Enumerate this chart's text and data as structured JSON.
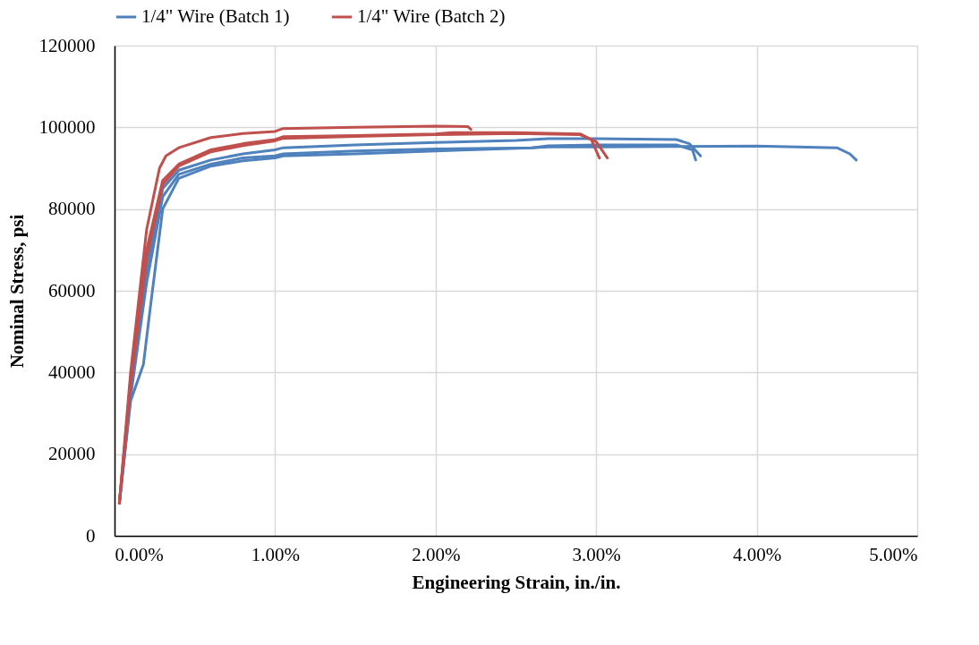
{
  "chart_data": {
    "type": "line",
    "xlabel": "Engineering Strain, in./in.",
    "ylabel": "Nominal Stress, psi",
    "xlim": [
      0,
      0.05
    ],
    "xticks": [
      {
        "value": 0,
        "label": "0.00%"
      },
      {
        "value": 0.01,
        "label": "1.00%"
      },
      {
        "value": 0.02,
        "label": "2.00%"
      },
      {
        "value": 0.03,
        "label": "3.00%"
      },
      {
        "value": 0.04,
        "label": "4.00%"
      },
      {
        "value": 0.05,
        "label": "5.00%"
      }
    ],
    "ylim": [
      0,
      120000
    ],
    "yticks": [
      0,
      20000,
      40000,
      60000,
      80000,
      100000,
      120000
    ],
    "grid": true,
    "legend": "top",
    "line_style": "solid",
    "series": [
      {
        "name": "1/4\" Wire (Batch 1)",
        "color": "#4f81bd",
        "x": [
          0.0003,
          0.001,
          0.002,
          0.003,
          0.004,
          0.006,
          0.008,
          0.01,
          0.0105,
          0.015,
          0.02,
          0.025,
          0.027,
          0.03,
          0.035,
          0.0358,
          0.0365
        ],
        "values": [
          8000,
          35000,
          65000,
          85000,
          89500,
          92000,
          93500,
          94500,
          95000,
          95700,
          96300,
          96800,
          97200,
          97200,
          97000,
          96000,
          93000
        ]
      },
      {
        "color": "#4f81bd",
        "x": [
          0.0003,
          0.001,
          0.0018,
          0.0022,
          0.003,
          0.004,
          0.006,
          0.008,
          0.01,
          0.0105,
          0.015,
          0.02,
          0.026,
          0.027,
          0.03,
          0.035,
          0.036,
          0.0362
        ],
        "values": [
          8000,
          33000,
          42000,
          55000,
          80000,
          87500,
          90500,
          91800,
          92500,
          93000,
          93500,
          94200,
          95000,
          95500,
          95700,
          95700,
          94500,
          92000
        ]
      },
      {
        "color": "#4f81bd",
        "x": [
          0.0003,
          0.001,
          0.002,
          0.003,
          0.004,
          0.006,
          0.008,
          0.01,
          0.0105,
          0.015,
          0.02,
          0.026,
          0.027,
          0.03,
          0.035,
          0.04,
          0.045,
          0.0458,
          0.0462
        ],
        "values": [
          8000,
          34000,
          62000,
          83000,
          88500,
          91000,
          92500,
          93000,
          93500,
          94200,
          94700,
          95000,
          95200,
          95200,
          95300,
          95400,
          95000,
          93500,
          92000
        ]
      },
      {
        "name": "1/4\" Wire (Batch 2)",
        "color": "#c0504d",
        "x": [
          0.0003,
          0.001,
          0.002,
          0.0028,
          0.0032,
          0.004,
          0.006,
          0.008,
          0.01,
          0.0105,
          0.015,
          0.02,
          0.022,
          0.0222
        ],
        "values": [
          8000,
          40000,
          75000,
          90000,
          93000,
          95000,
          97500,
          98500,
          99000,
          99700,
          100000,
          100300,
          100200,
          99500
        ]
      },
      {
        "color": "#c0504d",
        "x": [
          0.0003,
          0.001,
          0.002,
          0.003,
          0.004,
          0.006,
          0.008,
          0.01,
          0.0105,
          0.015,
          0.02,
          0.021,
          0.025,
          0.029,
          0.0297,
          0.0302
        ],
        "values": [
          8000,
          38000,
          70000,
          87000,
          91000,
          94500,
          96000,
          97000,
          97700,
          98000,
          98400,
          98700,
          98700,
          98400,
          97000,
          92500
        ]
      },
      {
        "color": "#c0504d",
        "x": [
          0.0003,
          0.001,
          0.002,
          0.003,
          0.004,
          0.006,
          0.008,
          0.01,
          0.0105,
          0.015,
          0.02,
          0.025,
          0.029,
          0.03,
          0.0307
        ],
        "values": [
          8000,
          37000,
          68000,
          86000,
          90500,
          94000,
          95500,
          96700,
          97300,
          97800,
          98200,
          98500,
          98200,
          96500,
          92500
        ]
      }
    ]
  }
}
